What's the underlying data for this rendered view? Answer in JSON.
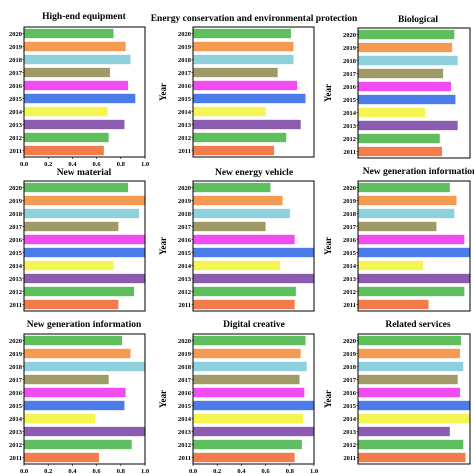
{
  "ylabel": "Year",
  "years": [
    "2011",
    "2012",
    "2013",
    "2014",
    "2015",
    "2016",
    "2017",
    "2018",
    "2019",
    "2020"
  ],
  "xticks": [
    "0.0",
    "0.2",
    "0.4",
    "0.6",
    "0.8",
    "1.0"
  ],
  "colors": {
    "2020": "#5fbf5f",
    "2019": "#f59a52",
    "2018": "#8ed0dc",
    "2017": "#a09a66",
    "2016": "#f04cf0",
    "2015": "#4c7ce8",
    "2014": "#f4f452",
    "2013": "#8c5cb0",
    "2012": "#5fbf5f",
    "2011": "#f27c4c"
  },
  "chart_data": [
    {
      "type": "bar",
      "orientation": "horizontal",
      "title": "High-end equipment",
      "categories": [
        "2011",
        "2012",
        "2013",
        "2014",
        "2015",
        "2016",
        "2017",
        "2018",
        "2019",
        "2020"
      ],
      "values": [
        0.66,
        0.7,
        0.83,
        0.69,
        0.92,
        0.86,
        0.71,
        0.88,
        0.84,
        0.74
      ],
      "xlim": [
        0,
        1
      ],
      "show_xticks": true,
      "show_ylabel": false
    },
    {
      "type": "bar",
      "orientation": "horizontal",
      "title": "Energy conservation and environmental protection",
      "categories": [
        "2011",
        "2012",
        "2013",
        "2014",
        "2015",
        "2016",
        "2017",
        "2018",
        "2019",
        "2020"
      ],
      "values": [
        0.67,
        0.77,
        0.89,
        0.6,
        0.93,
        0.86,
        0.7,
        0.83,
        0.83,
        0.81
      ],
      "xlim": [
        0,
        1
      ],
      "show_xticks": false,
      "show_ylabel": true
    },
    {
      "type": "bar",
      "orientation": "horizontal",
      "title": "Biological",
      "categories": [
        "2011",
        "2012",
        "2013",
        "2014",
        "2015",
        "2016",
        "2017",
        "2018",
        "2019",
        "2020"
      ],
      "values": [
        0.75,
        0.73,
        0.89,
        0.6,
        0.87,
        0.83,
        0.76,
        0.89,
        0.84,
        0.86
      ],
      "xlim": [
        0,
        1
      ],
      "show_xticks": false,
      "show_ylabel": true
    },
    {
      "type": "bar",
      "orientation": "horizontal",
      "title": "New material",
      "categories": [
        "2011",
        "2012",
        "2013",
        "2014",
        "2015",
        "2016",
        "2017",
        "2018",
        "2019",
        "2020"
      ],
      "values": [
        0.78,
        0.91,
        1.0,
        0.74,
        1.0,
        1.0,
        0.78,
        0.95,
        1.0,
        0.86
      ],
      "xlim": [
        0,
        1
      ],
      "show_xticks": false,
      "show_ylabel": false
    },
    {
      "type": "bar",
      "orientation": "horizontal",
      "title": "New energy vehicle",
      "categories": [
        "2011",
        "2012",
        "2013",
        "2014",
        "2015",
        "2016",
        "2017",
        "2018",
        "2019",
        "2020"
      ],
      "values": [
        0.84,
        0.85,
        1.0,
        0.72,
        1.0,
        0.84,
        0.6,
        0.8,
        0.74,
        0.64
      ],
      "xlim": [
        0,
        1
      ],
      "show_xticks": false,
      "show_ylabel": true
    },
    {
      "type": "bar",
      "orientation": "horizontal",
      "title": "New generation information",
      "categories": [
        "2011",
        "2012",
        "2013",
        "2014",
        "2015",
        "2016",
        "2017",
        "2018",
        "2019",
        "2020"
      ],
      "values": [
        0.63,
        0.95,
        1.0,
        0.58,
        1.0,
        0.95,
        0.7,
        0.86,
        0.88,
        0.82
      ],
      "xlim": [
        0,
        1
      ],
      "show_xticks": false,
      "show_ylabel": true
    },
    {
      "type": "bar",
      "orientation": "horizontal",
      "title": "New generation information",
      "categories": [
        "2011",
        "2012",
        "2013",
        "2014",
        "2015",
        "2016",
        "2017",
        "2018",
        "2019",
        "2020"
      ],
      "values": [
        0.62,
        0.89,
        1.0,
        0.59,
        0.83,
        0.84,
        0.7,
        1.0,
        0.88,
        0.81
      ],
      "xlim": [
        0,
        1
      ],
      "show_xticks": true,
      "show_ylabel": false
    },
    {
      "type": "bar",
      "orientation": "horizontal",
      "title": "Digital creative",
      "categories": [
        "2011",
        "2012",
        "2013",
        "2014",
        "2015",
        "2016",
        "2017",
        "2018",
        "2019",
        "2020"
      ],
      "values": [
        0.84,
        0.9,
        1.0,
        0.91,
        1.0,
        0.92,
        0.88,
        0.94,
        0.89,
        0.93
      ],
      "xlim": [
        0,
        1
      ],
      "show_xticks": true,
      "show_ylabel": true
    },
    {
      "type": "bar",
      "orientation": "horizontal",
      "title": "Related services",
      "categories": [
        "2011",
        "2012",
        "2013",
        "2014",
        "2015",
        "2016",
        "2017",
        "2018",
        "2019",
        "2020"
      ],
      "values": [
        0.96,
        0.94,
        0.82,
        1.0,
        1.0,
        0.91,
        0.89,
        0.94,
        0.91,
        0.92
      ],
      "xlim": [
        0,
        1
      ],
      "show_xticks": false,
      "show_ylabel": true
    }
  ]
}
